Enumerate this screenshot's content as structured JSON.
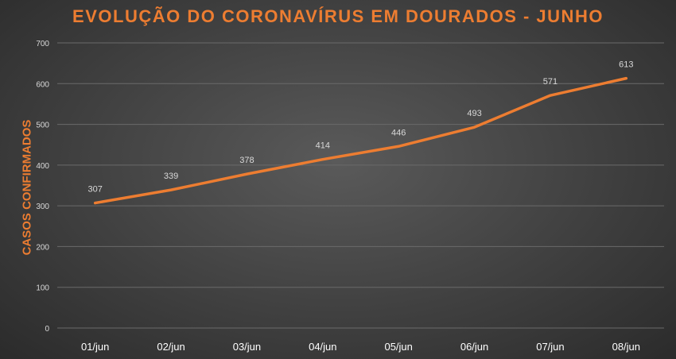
{
  "chart_data": {
    "type": "line",
    "title": "EVOLUÇÃO DO CORONAVÍRUS EM DOURADOS - JUNHO",
    "xlabel": "",
    "ylabel": "CASOS CONFIRMADOS",
    "categories": [
      "01/jun",
      "02/jun",
      "03/jun",
      "04/jun",
      "05/jun",
      "06/jun",
      "07/jun",
      "08/jun"
    ],
    "series": [
      {
        "values": [
          307,
          339,
          378,
          414,
          446,
          493,
          571,
          613
        ],
        "color": "#ed7d31"
      }
    ],
    "ylim": [
      0,
      700
    ],
    "yticks": [
      0,
      100,
      200,
      300,
      400,
      500,
      600,
      700
    ],
    "grid": true,
    "legend": "none",
    "data_labels": true
  }
}
